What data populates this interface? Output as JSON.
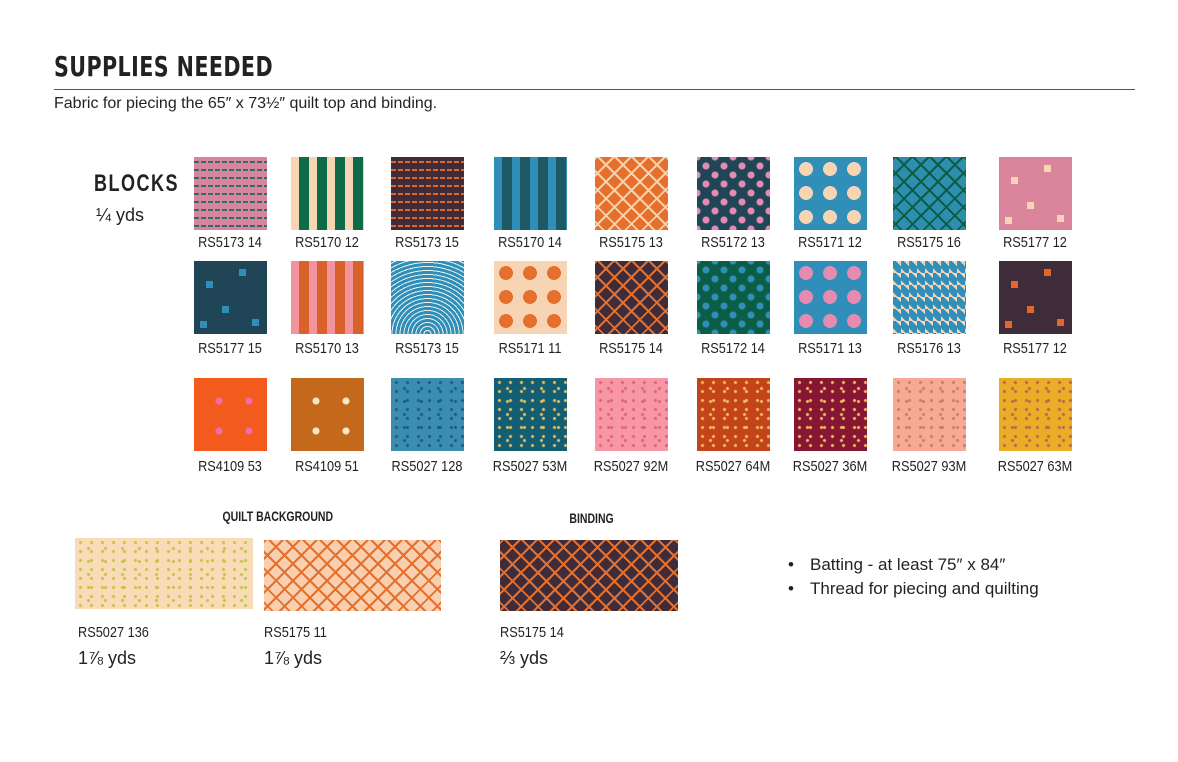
{
  "header": {
    "title": "SUPPLIES NEEDED",
    "subtitle": "Fabric for piecing the 65″ x 73½″ quilt top and binding."
  },
  "blocks": {
    "heading": "BLOCKS",
    "quantity": "¼ yds",
    "rows": [
      [
        {
          "code": "RS5173 14",
          "pattern": "plaid",
          "base": "#d9849a",
          "accent": "#2a6b78"
        },
        {
          "code": "RS5170 12",
          "pattern": "stripes",
          "base": "#f7d4b4",
          "accent": "#0d6b47"
        },
        {
          "code": "RS5173 15",
          "pattern": "plaid",
          "base": "#3e2c3a",
          "accent": "#e8652a"
        },
        {
          "code": "RS5170 14",
          "pattern": "stripes",
          "base": "#2f8fb8",
          "accent": "#1d5a66"
        },
        {
          "code": "RS5175 13",
          "pattern": "cross",
          "base": "#e5702e",
          "accent": "#f7d2a8"
        },
        {
          "code": "RS5172 13",
          "pattern": "dots",
          "base": "#1f4557",
          "accent": "#e58ab0"
        },
        {
          "code": "RS5171 12",
          "pattern": "wave",
          "base": "#2f8fb8",
          "accent": "#f7d4b4"
        },
        {
          "code": "RS5175 16",
          "pattern": "cross",
          "base": "#2d8fb0",
          "accent": "#0b5e45"
        },
        {
          "code": "RS5177 12",
          "pattern": "squares",
          "base": "#d9849a",
          "accent": "#f7d4b4"
        }
      ],
      [
        {
          "code": "RS5177 15",
          "pattern": "squares",
          "base": "#1f4557",
          "accent": "#2f8fb8"
        },
        {
          "code": "RS5170 13",
          "pattern": "stripes",
          "base": "#f293a0",
          "accent": "#d9622a"
        },
        {
          "code": "RS5173 15",
          "pattern": "arches",
          "base": "#2f8fb8",
          "accent": "#e8f0f0"
        },
        {
          "code": "RS5171 11",
          "pattern": "wave",
          "base": "#f7d4b4",
          "accent": "#e5702e"
        },
        {
          "code": "RS5175 14",
          "pattern": "cross",
          "base": "#3e2c3a",
          "accent": "#e5702e"
        },
        {
          "code": "RS5172 14",
          "pattern": "dots",
          "base": "#0b5e45",
          "accent": "#2f8fb8"
        },
        {
          "code": "RS5171 13",
          "pattern": "wave",
          "base": "#2f8fb8",
          "accent": "#e58ab0"
        },
        {
          "code": "RS5176 13",
          "pattern": "diamond",
          "base": "#f7d4b4",
          "accent": "#2f8fb8"
        },
        {
          "code": "RS5177 12",
          "pattern": "squares",
          "base": "#3e2c3a",
          "accent": "#e8652a"
        }
      ],
      [
        {
          "code": "RS4109 53",
          "pattern": "stars",
          "base": "#f25a1e",
          "accent": "#f06ab0"
        },
        {
          "code": "RS4109 51",
          "pattern": "stars",
          "base": "#c4681c",
          "accent": "#f7e6c8"
        },
        {
          "code": "RS5027 128",
          "pattern": "speckle",
          "base": "#3b8eb0",
          "accent": "#1d5a80"
        },
        {
          "code": "RS5027 53M",
          "pattern": "speckle",
          "base": "#135e73",
          "accent": "#e8c060"
        },
        {
          "code": "RS5027 92M",
          "pattern": "speckle",
          "base": "#f797a5",
          "accent": "#e0607a"
        },
        {
          "code": "RS5027 64M",
          "pattern": "speckle",
          "base": "#c3441a",
          "accent": "#f2c060"
        },
        {
          "code": "RS5027 36M",
          "pattern": "speckle",
          "base": "#861633",
          "accent": "#f2c060"
        },
        {
          "code": "RS5027 93M",
          "pattern": "speckle",
          "base": "#f7a994",
          "accent": "#c08060"
        },
        {
          "code": "RS5027 63M",
          "pattern": "speckle",
          "base": "#e9ad27",
          "accent": "#c06050"
        }
      ]
    ]
  },
  "quilt_background": {
    "heading": "QUILT BACKGROUND",
    "items": [
      {
        "code": "RS5027 136",
        "quantity": "1⅞ yds",
        "pattern": "speckle",
        "base": "#f8dcb8",
        "accent": "#c8c040"
      },
      {
        "code": "RS5175 11",
        "quantity": "1⅞ yds",
        "pattern": "cross",
        "base": "#f8d0b0",
        "accent": "#e5702e"
      }
    ]
  },
  "binding": {
    "heading": "BINDING",
    "items": [
      {
        "code": "RS5175 14",
        "quantity": "⅔ yds",
        "pattern": "cross",
        "base": "#3e2c3a",
        "accent": "#e5702e"
      }
    ]
  },
  "other_supplies": [
    "Batting - at least 75″ x 84″",
    "Thread for piecing and quilting"
  ]
}
